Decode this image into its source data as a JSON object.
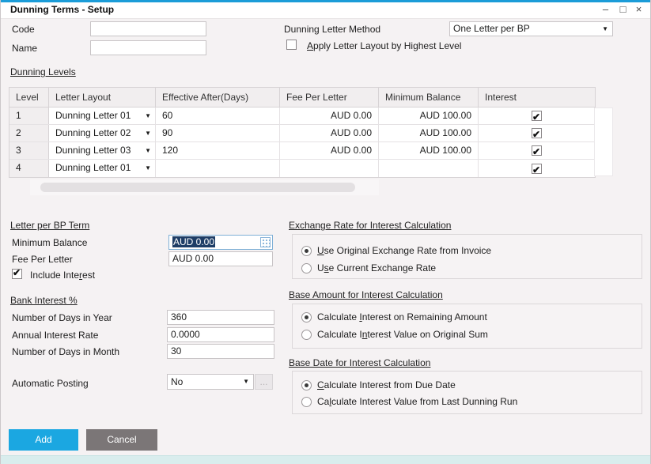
{
  "window": {
    "title": "Dunning Terms - Setup",
    "controls": {
      "minimize": "–",
      "maximize": "□",
      "close": "×"
    }
  },
  "icons": {
    "caret": "▼",
    "check": "✔"
  },
  "colors": {
    "accent_blue": "#1ba7e1",
    "cancel_gray": "#7b7677",
    "selection_navy": "#1e3d66",
    "top_border_blue": "#1b9cd8",
    "bottom_strip_cyan": "#d9eded"
  },
  "header": {
    "code_label": "Code",
    "code_value": "",
    "name_label": "Name",
    "name_value": "",
    "method_label": "Dunning Letter Method",
    "method_value": "One Letter per BP",
    "apply_checkbox": {
      "text": "Apply Letter Layout by Highest Level",
      "mnemonic": 0,
      "checked": false
    }
  },
  "levels": {
    "section_title": "Dunning Levels",
    "columns": [
      "Level",
      "Letter Layout",
      "Effective After(Days)",
      "Fee Per Letter",
      "Minimum Balance",
      "Interest"
    ],
    "rows": [
      {
        "level": "1",
        "layout": "Dunning Letter 01",
        "days": "60",
        "fee": "AUD 0.00",
        "min": "AUD 100.00",
        "interest": true
      },
      {
        "level": "2",
        "layout": "Dunning Letter 02",
        "days": "90",
        "fee": "AUD 0.00",
        "min": "AUD 100.00",
        "interest": true
      },
      {
        "level": "3",
        "layout": "Dunning Letter 03",
        "days": "120",
        "fee": "AUD 0.00",
        "min": "AUD 100.00",
        "interest": true
      },
      {
        "level": "4",
        "layout": "Dunning Letter 01",
        "days": "",
        "fee": "",
        "min": "",
        "interest": true
      }
    ]
  },
  "bp_term": {
    "section_title": "Letter per BP Term",
    "min_balance_label": "Minimum Balance",
    "min_balance_value": "AUD 0.00",
    "fee_label": "Fee Per Letter",
    "fee_value": "AUD 0.00",
    "include_interest": {
      "text": "Include Interest",
      "mnemonic": 12,
      "checked": true
    }
  },
  "bank_interest": {
    "section_title": "Bank Interest %",
    "days_year_label": "Number of Days in Year",
    "days_year_value": "360",
    "rate_label": "Annual Interest Rate",
    "rate_value": "0.0000",
    "days_month_label": "Number of Days in Month",
    "days_month_value": "30",
    "posting_label": "Automatic Posting",
    "posting_value": "No",
    "ellipsis_label": "..."
  },
  "exchange_rate": {
    "section_title": "Exchange Rate for Interest Calculation",
    "options": [
      {
        "text": "Use Original Exchange Rate from Invoice",
        "mnemonic": 0,
        "selected": true
      },
      {
        "text": "Use Current Exchange Rate",
        "mnemonic": 1,
        "selected": false
      }
    ]
  },
  "base_amount": {
    "section_title": "Base Amount for Interest Calculation",
    "options": [
      {
        "text": "Calculate Interest on Remaining Amount",
        "mnemonic": 10,
        "selected": true
      },
      {
        "text": "Calculate Interest Value on Original Sum",
        "mnemonic": 11,
        "selected": false
      }
    ]
  },
  "base_date": {
    "section_title": "Base Date for Interest Calculation",
    "options": [
      {
        "text": "Calculate Interest from Due Date",
        "mnemonic": 0,
        "selected": true
      },
      {
        "text": "Calculate Interest Value from Last Dunning Run",
        "mnemonic": 2,
        "selected": false
      }
    ]
  },
  "footer": {
    "add_label": "Add",
    "cancel_label": "Cancel"
  }
}
